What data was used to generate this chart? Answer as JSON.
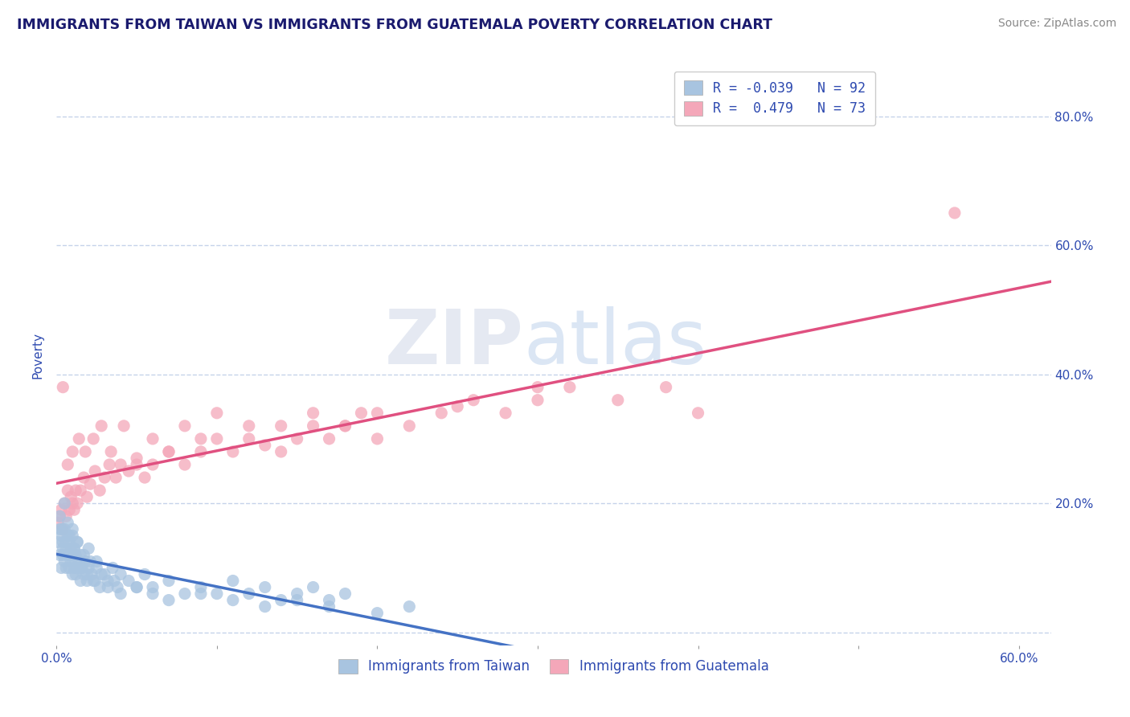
{
  "title": "IMMIGRANTS FROM TAIWAN VS IMMIGRANTS FROM GUATEMALA POVERTY CORRELATION CHART",
  "source": "Source: ZipAtlas.com",
  "ylabel": "Poverty",
  "xlim": [
    0.0,
    0.62
  ],
  "ylim": [
    -0.02,
    0.88
  ],
  "ytick_positions": [
    0.0,
    0.2,
    0.4,
    0.6,
    0.8
  ],
  "ytick_labels_right": [
    "",
    "20.0%",
    "40.0%",
    "60.0%",
    "80.0%"
  ],
  "xtick_positions": [
    0.0,
    0.1,
    0.2,
    0.3,
    0.4,
    0.5,
    0.6
  ],
  "xtick_labels": [
    "0.0%",
    "",
    "",
    "",
    "",
    "",
    "60.0%"
  ],
  "taiwan_R": -0.039,
  "taiwan_N": 92,
  "guatemala_R": 0.479,
  "guatemala_N": 73,
  "taiwan_color": "#a8c4e0",
  "guatemala_color": "#f4a7b9",
  "taiwan_line_color": "#4472c4",
  "guatemala_line_color": "#e05080",
  "text_color": "#2e4ab0",
  "title_color": "#1a1a6e",
  "background_color": "#ffffff",
  "grid_color": "#c0cfe8",
  "taiwan_x": [
    0.001,
    0.002,
    0.002,
    0.003,
    0.003,
    0.004,
    0.004,
    0.005,
    0.005,
    0.006,
    0.006,
    0.007,
    0.007,
    0.008,
    0.008,
    0.009,
    0.009,
    0.01,
    0.01,
    0.01,
    0.011,
    0.011,
    0.012,
    0.012,
    0.013,
    0.013,
    0.014,
    0.015,
    0.015,
    0.016,
    0.017,
    0.018,
    0.019,
    0.02,
    0.02,
    0.022,
    0.024,
    0.025,
    0.027,
    0.03,
    0.032,
    0.035,
    0.038,
    0.04,
    0.045,
    0.05,
    0.055,
    0.06,
    0.07,
    0.08,
    0.09,
    0.1,
    0.11,
    0.12,
    0.13,
    0.14,
    0.15,
    0.16,
    0.17,
    0.18,
    0.002,
    0.003,
    0.004,
    0.005,
    0.006,
    0.007,
    0.008,
    0.009,
    0.01,
    0.011,
    0.012,
    0.013,
    0.015,
    0.017,
    0.019,
    0.021,
    0.023,
    0.025,
    0.028,
    0.032,
    0.036,
    0.04,
    0.05,
    0.06,
    0.07,
    0.09,
    0.11,
    0.13,
    0.15,
    0.17,
    0.2,
    0.22
  ],
  "taiwan_y": [
    0.14,
    0.12,
    0.16,
    0.1,
    0.15,
    0.12,
    0.14,
    0.11,
    0.16,
    0.1,
    0.13,
    0.12,
    0.15,
    0.1,
    0.14,
    0.11,
    0.13,
    0.09,
    0.12,
    0.15,
    0.1,
    0.13,
    0.09,
    0.12,
    0.1,
    0.14,
    0.11,
    0.08,
    0.12,
    0.1,
    0.09,
    0.11,
    0.08,
    0.1,
    0.13,
    0.09,
    0.08,
    0.11,
    0.07,
    0.09,
    0.08,
    0.1,
    0.07,
    0.09,
    0.08,
    0.07,
    0.09,
    0.07,
    0.08,
    0.06,
    0.07,
    0.06,
    0.08,
    0.06,
    0.07,
    0.05,
    0.06,
    0.07,
    0.05,
    0.06,
    0.18,
    0.16,
    0.13,
    0.2,
    0.14,
    0.17,
    0.15,
    0.12,
    0.16,
    0.13,
    0.11,
    0.14,
    0.1,
    0.12,
    0.09,
    0.11,
    0.08,
    0.1,
    0.09,
    0.07,
    0.08,
    0.06,
    0.07,
    0.06,
    0.05,
    0.06,
    0.05,
    0.04,
    0.05,
    0.04,
    0.03,
    0.04
  ],
  "guatemala_x": [
    0.001,
    0.002,
    0.003,
    0.004,
    0.005,
    0.006,
    0.007,
    0.008,
    0.009,
    0.01,
    0.011,
    0.012,
    0.013,
    0.015,
    0.017,
    0.019,
    0.021,
    0.024,
    0.027,
    0.03,
    0.033,
    0.037,
    0.04,
    0.045,
    0.05,
    0.055,
    0.06,
    0.07,
    0.08,
    0.09,
    0.1,
    0.11,
    0.12,
    0.13,
    0.14,
    0.15,
    0.16,
    0.17,
    0.18,
    0.19,
    0.2,
    0.22,
    0.24,
    0.26,
    0.28,
    0.3,
    0.32,
    0.35,
    0.38,
    0.4,
    0.004,
    0.007,
    0.01,
    0.014,
    0.018,
    0.023,
    0.028,
    0.034,
    0.042,
    0.05,
    0.06,
    0.07,
    0.08,
    0.09,
    0.1,
    0.12,
    0.14,
    0.16,
    0.18,
    0.2,
    0.25,
    0.3,
    0.56
  ],
  "guatemala_y": [
    0.17,
    0.18,
    0.19,
    0.16,
    0.2,
    0.18,
    0.22,
    0.19,
    0.21,
    0.2,
    0.19,
    0.22,
    0.2,
    0.22,
    0.24,
    0.21,
    0.23,
    0.25,
    0.22,
    0.24,
    0.26,
    0.24,
    0.26,
    0.25,
    0.27,
    0.24,
    0.26,
    0.28,
    0.26,
    0.28,
    0.3,
    0.28,
    0.3,
    0.29,
    0.32,
    0.3,
    0.32,
    0.3,
    0.32,
    0.34,
    0.34,
    0.32,
    0.34,
    0.36,
    0.34,
    0.36,
    0.38,
    0.36,
    0.38,
    0.34,
    0.38,
    0.26,
    0.28,
    0.3,
    0.28,
    0.3,
    0.32,
    0.28,
    0.32,
    0.26,
    0.3,
    0.28,
    0.32,
    0.3,
    0.34,
    0.32,
    0.28,
    0.34,
    0.32,
    0.3,
    0.35,
    0.38,
    0.65
  ]
}
